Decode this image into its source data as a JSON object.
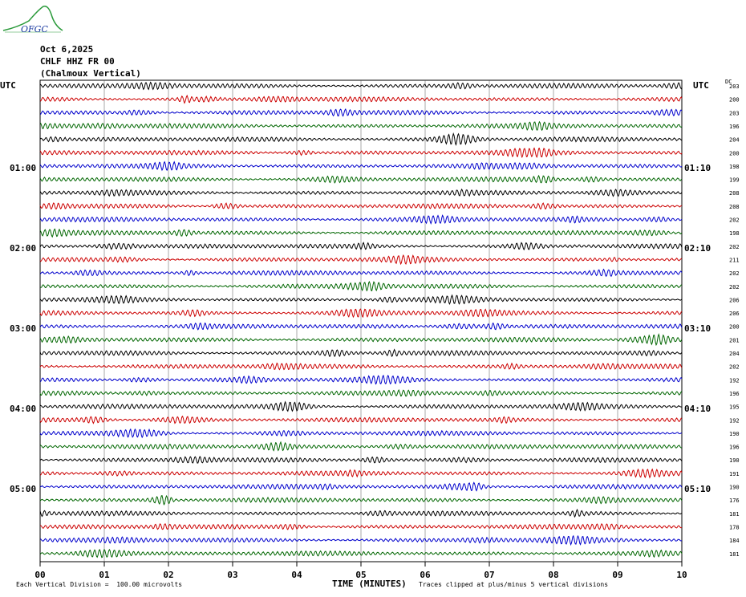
{
  "logo_text": "OFGC",
  "header": {
    "date": "Oct 6,2025",
    "station": "CHLF HHZ FR 00",
    "location": "(Chalmoux Vertical)"
  },
  "axis": {
    "left_label": "UTC",
    "right_label": "UTC",
    "dc_label": "DC",
    "x_title": "TIME (MINUTES)",
    "x_ticks": [
      "00",
      "01",
      "02",
      "03",
      "04",
      "05",
      "06",
      "07",
      "08",
      "09",
      "10"
    ],
    "left_hours": [
      "01:00",
      "02:00",
      "03:00",
      "04:00",
      "05:00"
    ],
    "right_hours": [
      "01:10",
      "02:10",
      "03:10",
      "04:10",
      "05:10"
    ]
  },
  "dc_offsets": [
    "203",
    "200",
    "203",
    "196",
    "204",
    "200",
    "198",
    "199",
    "208",
    "208",
    "202",
    "198",
    "202",
    "211",
    "202",
    "202",
    "206",
    "206",
    "200",
    "201",
    "204",
    "202",
    "192",
    "196",
    "195",
    "192",
    "190",
    "196",
    "190",
    "191",
    "190",
    "176",
    "181",
    "178",
    "184",
    "181"
  ],
  "footer": {
    "scale_note": "Each Vertical Division =  100.00 microvolts",
    "clip_note": "Traces clipped at plus/minus 5 vertical divisions"
  },
  "colors": {
    "trace_cycle": [
      "#000000",
      "#cc0000",
      "#0000cc",
      "#006600"
    ],
    "grid": "#000000",
    "logo": "#2a9a3a",
    "logo_text": "#1a3aa0"
  }
}
